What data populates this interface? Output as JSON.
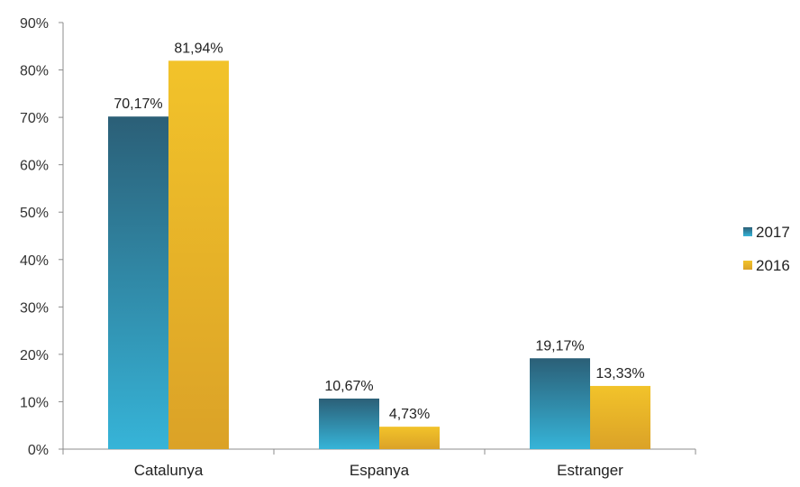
{
  "chart_data": {
    "type": "bar",
    "title": "",
    "xlabel": "",
    "ylabel": "",
    "ylim": [
      0,
      90
    ],
    "ytick_step": 10,
    "ytick_labels": [
      "0%",
      "10%",
      "20%",
      "30%",
      "40%",
      "50%",
      "60%",
      "70%",
      "80%",
      "90%"
    ],
    "categories": [
      "Catalunya",
      "Espanya",
      "Estranger"
    ],
    "series": [
      {
        "name": "2017",
        "values": [
          70.17,
          10.67,
          19.17
        ],
        "labels": [
          "70,17%",
          "10,67%",
          "19,17%"
        ],
        "color_top": "#2b5f77",
        "color_bottom": "#36b4d8"
      },
      {
        "name": "2016",
        "values": [
          81.94,
          4.73,
          13.33
        ],
        "labels": [
          "81,94%",
          "4,73%",
          "13,33%"
        ],
        "color_top": "#f2c32a",
        "color_bottom": "#dba227"
      }
    ],
    "grid": false,
    "legend": "right"
  }
}
